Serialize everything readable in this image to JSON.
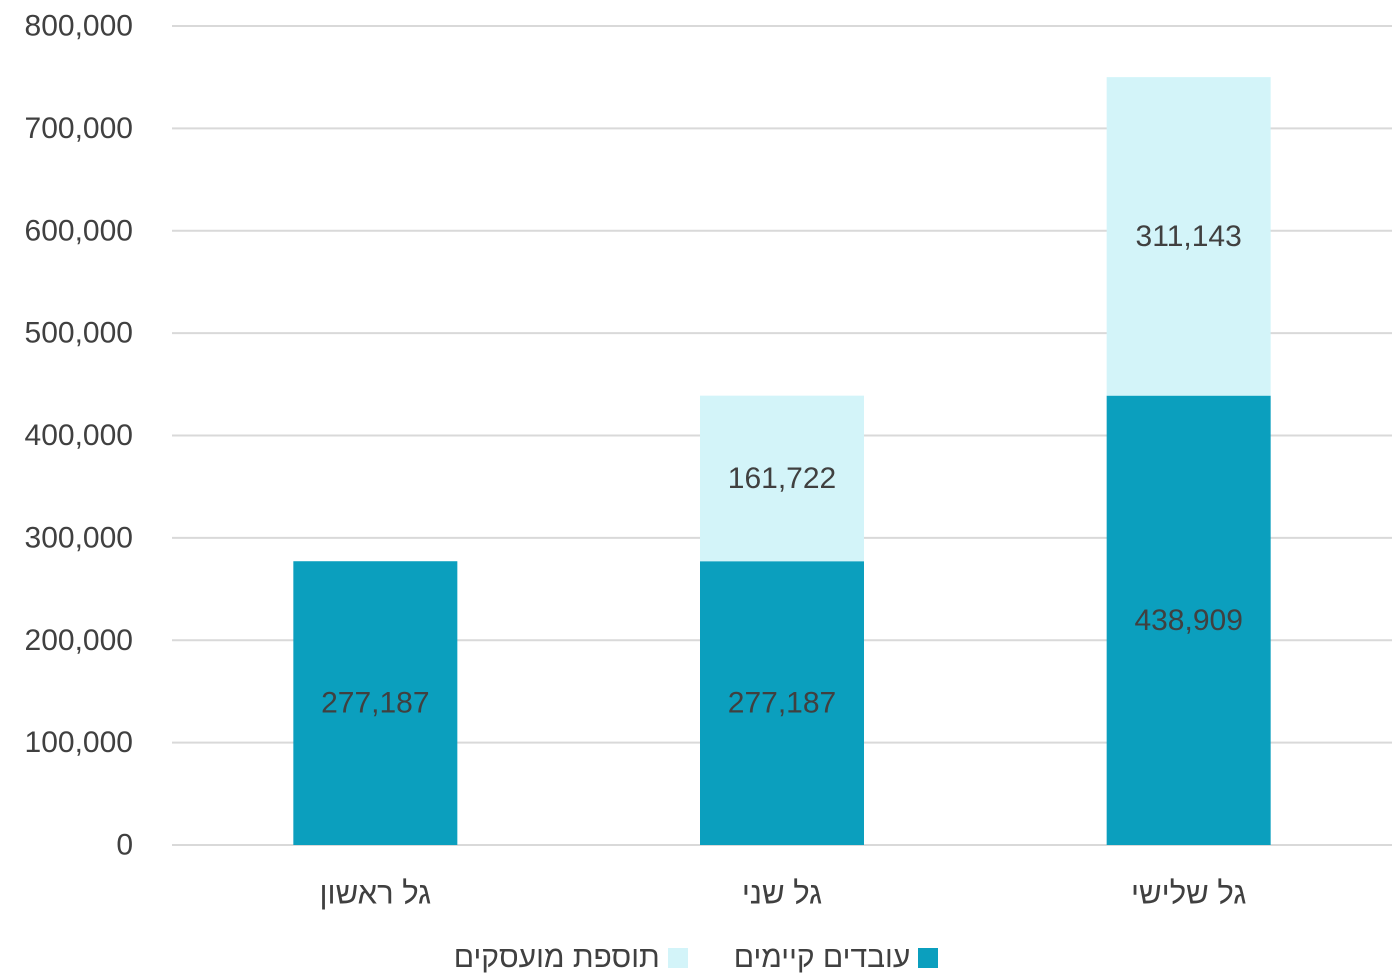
{
  "chart_data": {
    "type": "bar",
    "stacked": true,
    "categories": [
      "גל ראשון",
      "גל שני",
      "גל שלישי"
    ],
    "series": [
      {
        "name": "עובדים קיימים",
        "color": "#0b9fbe",
        "values": [
          277187,
          277187,
          438909
        ],
        "labels": [
          "277,187",
          "277,187",
          "438,909"
        ]
      },
      {
        "name": "תוספת מועסקים",
        "color": "#d3f4f9",
        "values": [
          0,
          161722,
          311143
        ],
        "labels": [
          "",
          "161,722",
          "311,143"
        ]
      }
    ],
    "ylim": [
      0,
      800000
    ],
    "yticks": [
      0,
      100000,
      200000,
      300000,
      400000,
      500000,
      600000,
      700000,
      800000
    ],
    "ytick_labels": [
      "0",
      "100,000",
      "200,000",
      "300,000",
      "400,000",
      "500,000",
      "600,000",
      "700,000",
      "800,000"
    ],
    "grid": true,
    "gridline_color": "#d9d9d9",
    "legend_position": "bottom",
    "title": "",
    "xlabel": "",
    "ylabel": ""
  }
}
